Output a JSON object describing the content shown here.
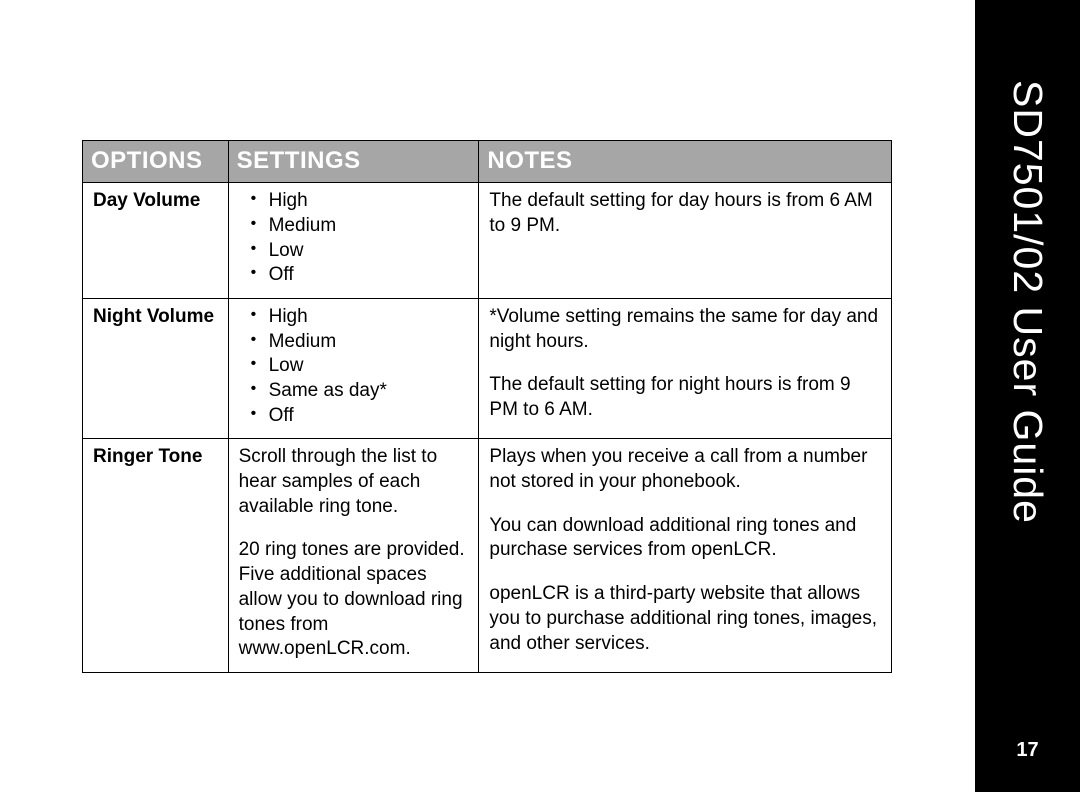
{
  "sidebar": {
    "title": "SD7501/02 User Guide",
    "page_number": "17"
  },
  "table": {
    "headers": {
      "options": "OPTIONS",
      "settings": "SETTINGS",
      "notes": "NOTES"
    },
    "rows": {
      "day_volume": {
        "option": "Day Volume",
        "settings": [
          "High",
          "Medium",
          "Low",
          "Off"
        ],
        "notes_p1": "The default setting for day hours is from 6 AM to 9 PM."
      },
      "night_volume": {
        "option": "Night Volume",
        "settings": [
          "High",
          "Medium",
          "Low",
          "Same as day*",
          "Off"
        ],
        "notes_p1": "*Volume setting remains the same for day and night hours.",
        "notes_p2": "The default setting for night hours is from 9 PM to 6 AM."
      },
      "ringer_tone": {
        "option": "Ringer Tone",
        "settings_p1": "Scroll through the list to hear samples of each available ring tone.",
        "settings_p2": "20 ring tones are provided.",
        "settings_p3": "Five additional spaces allow you to download ring tones from www.openLCR.com.",
        "notes_p1": "Plays when you receive a call from a number not stored in your phonebook.",
        "notes_p2": "You can download additional ring tones and purchase services from openLCR.",
        "notes_p3": "openLCR is a third-party website that allows you to purchase additional ring tones, images, and other services."
      }
    }
  }
}
